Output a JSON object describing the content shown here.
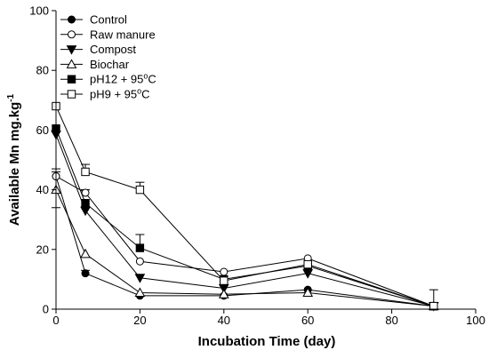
{
  "chart_data": {
    "type": "line",
    "xlabel": "Incubation Time (day)",
    "ylabel": "Available Mn mg.kg",
    "ylabel_superscript": "-1",
    "xlim": [
      0,
      100
    ],
    "ylim": [
      0,
      100
    ],
    "x_ticks": [
      "0",
      "20",
      "40",
      "60",
      "80",
      "100"
    ],
    "y_ticks": [
      "0",
      "20",
      "40",
      "60",
      "80",
      "100"
    ],
    "grid": false,
    "legend_position": "top-left",
    "x": [
      0,
      7,
      20,
      40,
      60,
      90
    ],
    "series": [
      {
        "name": "Control",
        "marker": "circle-filled",
        "values": [
          44.5,
          12,
          4.5,
          4.5,
          6.5,
          1
        ],
        "errors": [
          0,
          1,
          0,
          0,
          0,
          0
        ]
      },
      {
        "name": "Raw manure",
        "marker": "circle-open",
        "values": [
          44.5,
          39,
          16,
          12.5,
          17,
          1
        ],
        "errors": [
          0,
          1,
          0,
          0,
          0,
          0
        ]
      },
      {
        "name": "Compost",
        "marker": "triangle-down-filled",
        "values": [
          58.5,
          33,
          10.5,
          7,
          12,
          1
        ],
        "errors": [
          0,
          0,
          0,
          0,
          0,
          0
        ]
      },
      {
        "name": "Biochar",
        "marker": "triangle-up-open",
        "values": [
          40,
          18.5,
          5.5,
          5,
          5.5,
          1
        ],
        "errors": [
          6,
          0,
          0,
          0,
          0,
          0
        ]
      },
      {
        "name": "pH12 + 95",
        "name_super": "o",
        "name_suffix": "C",
        "marker": "square-filled",
        "values": [
          60.5,
          35.5,
          20.5,
          10,
          14.5,
          1
        ],
        "errors": [
          0,
          0,
          4.5,
          0,
          0,
          0
        ]
      },
      {
        "name": "pH9 + 95",
        "name_super": "o",
        "name_suffix": "C",
        "marker": "square-open",
        "values": [
          68,
          46,
          40,
          9.5,
          15,
          1
        ],
        "errors": [
          0,
          2.5,
          2.5,
          0,
          0,
          5.5
        ]
      }
    ],
    "error_bar_x0": {
      "value": 44.5,
      "lower": 34,
      "upper": 47
    }
  }
}
